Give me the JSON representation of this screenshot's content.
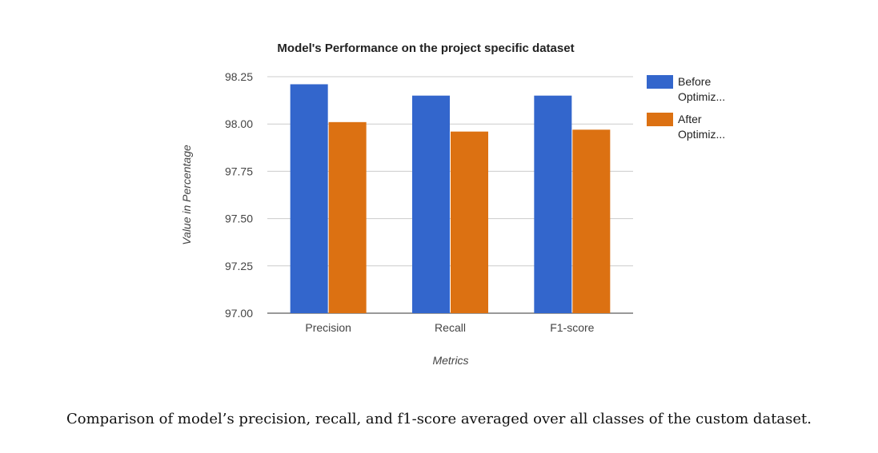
{
  "caption": "Comparison of model’s precision, recall, and f1-score averaged over all classes of the custom dataset.",
  "colors": {
    "before": "#3366cc",
    "after": "#dc7112",
    "grid": "#cccccc",
    "axis": "#333333",
    "text": "#222222",
    "muted": "#444444"
  },
  "chart_data": {
    "type": "bar",
    "title": "Model's Performance on the project specific dataset",
    "xlabel": "Metrics",
    "ylabel": "Value in Percentage",
    "categories": [
      "Precision",
      "Recall",
      "F1-score"
    ],
    "series": [
      {
        "name": "Before Optimiz...",
        "legend_lines": [
          "Before",
          "Optimiz..."
        ],
        "values": [
          98.21,
          98.15,
          98.15
        ]
      },
      {
        "name": "After Optimiz...",
        "legend_lines": [
          "After",
          "Optimiz..."
        ],
        "values": [
          98.01,
          97.96,
          97.97
        ]
      }
    ],
    "ylim": [
      97.0,
      98.25
    ],
    "yticks": [
      97.0,
      97.25,
      97.5,
      97.75,
      98.0,
      98.25
    ],
    "ytick_labels": [
      "97.00",
      "97.25",
      "97.50",
      "97.75",
      "98.00",
      "98.25"
    ],
    "grid": true,
    "legend": "right"
  }
}
